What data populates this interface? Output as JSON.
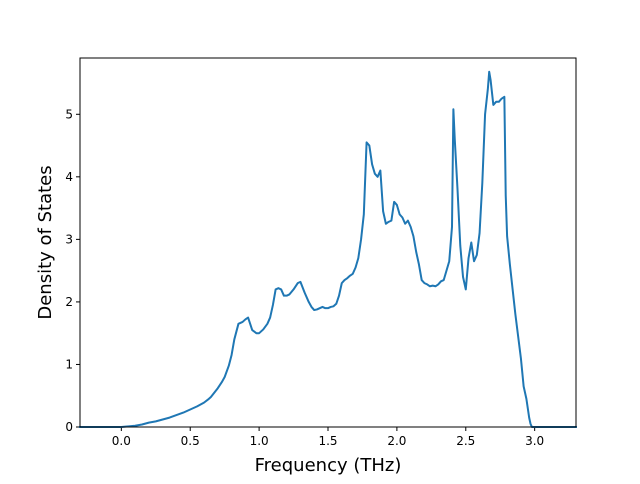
{
  "chart_data": {
    "type": "line",
    "title": "",
    "xlabel": "Frequency (THz)",
    "ylabel": "Density of States",
    "xlim": [
      -0.3,
      3.3
    ],
    "ylim": [
      0,
      5.9
    ],
    "xticks": [
      0.0,
      0.5,
      1.0,
      1.5,
      2.0,
      2.5,
      3.0
    ],
    "xtick_labels": [
      "0.0",
      "0.5",
      "1.0",
      "1.5",
      "2.0",
      "2.5",
      "3.0"
    ],
    "yticks": [
      0,
      1,
      2,
      3,
      4,
      5
    ],
    "ytick_labels": [
      "0",
      "1",
      "2",
      "3",
      "4",
      "5"
    ],
    "grid": false,
    "line_color": "#1f77b4",
    "series": [
      {
        "x": [
          -0.3,
          -0.2,
          -0.1,
          0.0,
          0.1,
          0.15,
          0.2,
          0.25,
          0.3,
          0.35,
          0.4,
          0.45,
          0.5,
          0.55,
          0.6,
          0.63,
          0.65,
          0.7,
          0.73,
          0.75,
          0.78,
          0.8,
          0.82,
          0.85,
          0.88,
          0.9,
          0.92,
          0.95,
          0.98,
          1.0,
          1.03,
          1.06,
          1.08,
          1.1,
          1.12,
          1.14,
          1.16,
          1.18,
          1.2,
          1.22,
          1.25,
          1.28,
          1.3,
          1.33,
          1.36,
          1.38,
          1.4,
          1.42,
          1.44,
          1.46,
          1.48,
          1.5,
          1.52,
          1.54,
          1.56,
          1.58,
          1.6,
          1.62,
          1.64,
          1.66,
          1.68,
          1.7,
          1.72,
          1.74,
          1.76,
          1.78,
          1.8,
          1.82,
          1.84,
          1.86,
          1.88,
          1.9,
          1.92,
          1.94,
          1.96,
          1.98,
          2.0,
          2.02,
          2.04,
          2.06,
          2.08,
          2.1,
          2.12,
          2.14,
          2.16,
          2.18,
          2.2,
          2.22,
          2.24,
          2.26,
          2.28,
          2.3,
          2.32,
          2.34,
          2.36,
          2.38,
          2.4,
          2.41,
          2.42,
          2.44,
          2.46,
          2.48,
          2.5,
          2.52,
          2.54,
          2.56,
          2.58,
          2.6,
          2.62,
          2.64,
          2.66,
          2.67,
          2.68,
          2.7,
          2.72,
          2.74,
          2.76,
          2.78,
          2.79,
          2.8,
          2.82,
          2.84,
          2.86,
          2.88,
          2.9,
          2.92,
          2.94,
          2.96,
          2.97,
          2.98,
          3.0,
          3.1,
          3.2,
          3.3
        ],
        "y": [
          0,
          0,
          0,
          0,
          0.02,
          0.04,
          0.07,
          0.09,
          0.12,
          0.15,
          0.19,
          0.23,
          0.28,
          0.33,
          0.39,
          0.44,
          0.48,
          0.62,
          0.72,
          0.8,
          0.98,
          1.15,
          1.4,
          1.65,
          1.68,
          1.72,
          1.75,
          1.55,
          1.5,
          1.5,
          1.56,
          1.65,
          1.75,
          1.95,
          2.2,
          2.22,
          2.2,
          2.1,
          2.1,
          2.12,
          2.2,
          2.3,
          2.32,
          2.15,
          2.0,
          1.92,
          1.87,
          1.88,
          1.9,
          1.92,
          1.9,
          1.9,
          1.92,
          1.93,
          1.97,
          2.1,
          2.3,
          2.35,
          2.38,
          2.42,
          2.45,
          2.55,
          2.7,
          3.0,
          3.4,
          4.55,
          4.5,
          4.2,
          4.05,
          4.0,
          4.1,
          3.45,
          3.25,
          3.28,
          3.3,
          3.6,
          3.55,
          3.4,
          3.35,
          3.25,
          3.3,
          3.2,
          3.05,
          2.8,
          2.6,
          2.35,
          2.3,
          2.28,
          2.25,
          2.26,
          2.25,
          2.28,
          2.33,
          2.35,
          2.5,
          2.65,
          3.2,
          5.08,
          4.6,
          3.8,
          2.9,
          2.4,
          2.2,
          2.7,
          2.95,
          2.65,
          2.75,
          3.1,
          3.9,
          5.0,
          5.4,
          5.68,
          5.55,
          5.15,
          5.2,
          5.2,
          5.25,
          5.28,
          3.7,
          3.05,
          2.6,
          2.2,
          1.8,
          1.45,
          1.1,
          0.65,
          0.45,
          0.15,
          0.05,
          0,
          0,
          0,
          0,
          0
        ]
      }
    ]
  }
}
